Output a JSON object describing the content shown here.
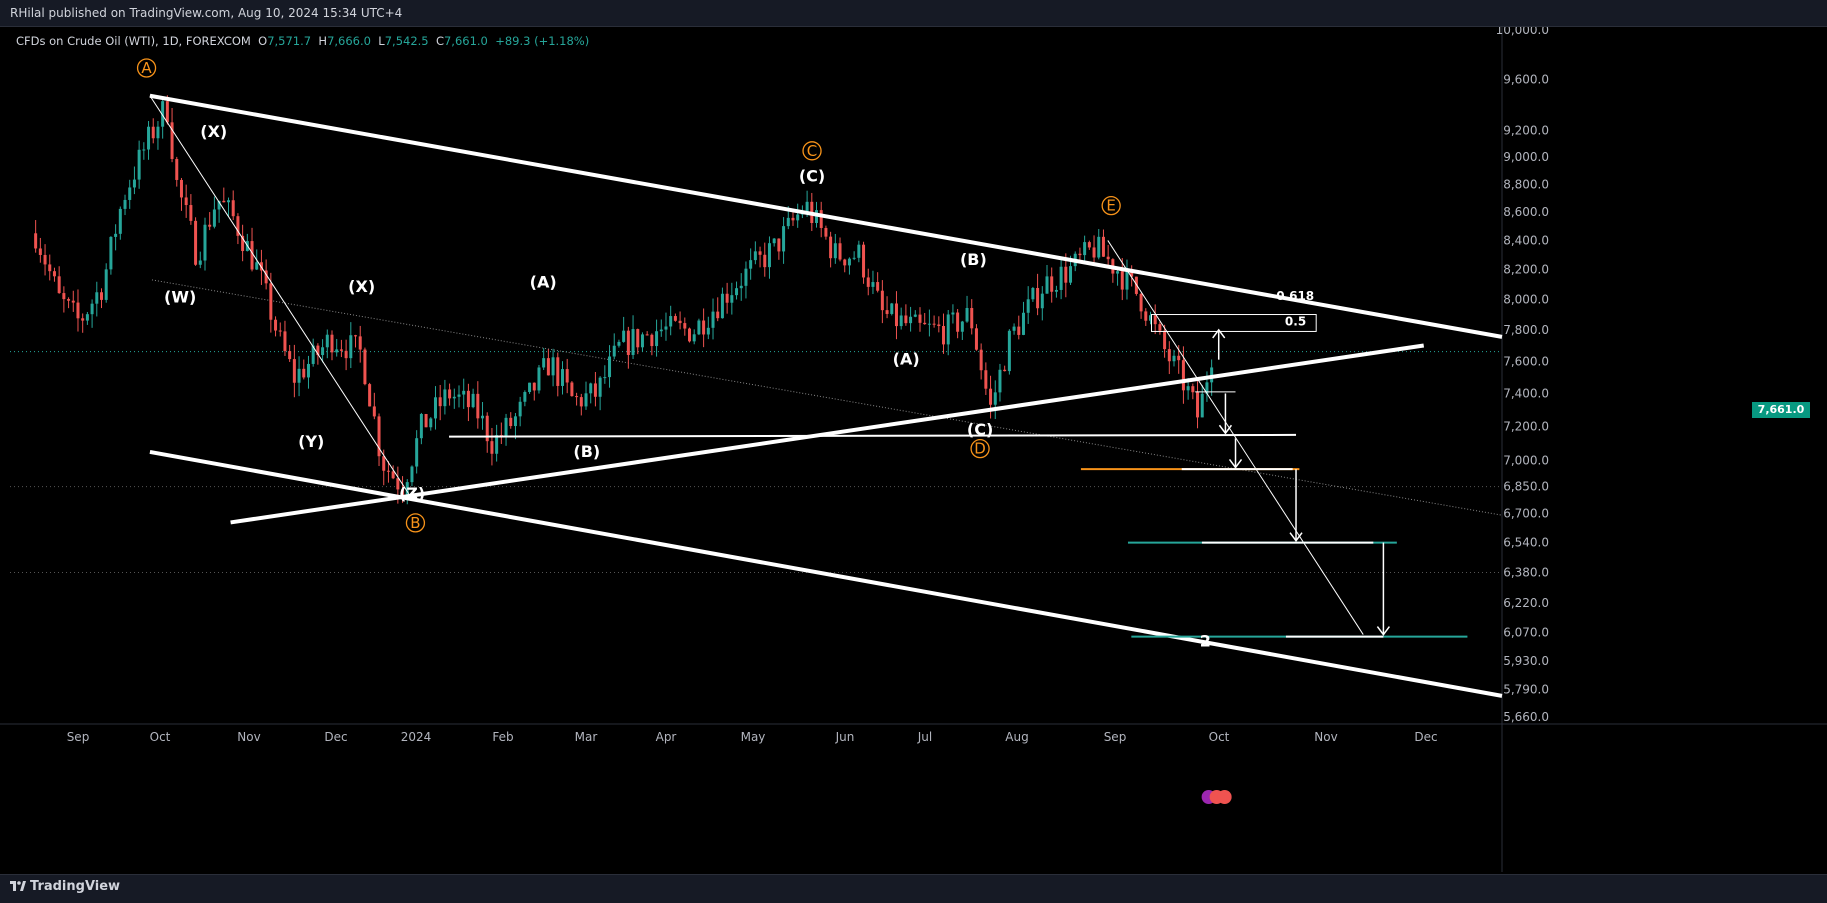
{
  "header": {
    "publisher": "RHilal published on TradingView.com, Aug 10, 2024 15:34 UTC+4"
  },
  "legend": {
    "symbol": "CFDs on Crude Oil (WTI), 1D, FOREXCOM",
    "o_label": "O",
    "o_value": "7,571.7",
    "h_label": "H",
    "h_value": "7,666.0",
    "l_label": "L",
    "l_value": "7,542.5",
    "c_label": "C",
    "c_value": "7,661.0",
    "change": "+89.3 (+1.18%)"
  },
  "footer": {
    "brand": "TradingView"
  },
  "last_price": "7,661.0",
  "colors": {
    "up": "#26a69a",
    "down": "#ef5350",
    "background": "#000000",
    "orange": "#f7931a",
    "green_level": "#26a69a",
    "price_tag": "#089981"
  },
  "chart_data": {
    "type": "candlestick",
    "symbol": "CFDs on Crude Oil (WTI)",
    "timeframe": "1D",
    "y_scale": "log",
    "ylim": [
      5660,
      10000
    ],
    "y_ticks": [
      "10,000.0",
      "9,600.0",
      "9,200.0",
      "9,000.0",
      "8,800.0",
      "8,600.0",
      "8,400.0",
      "8,200.0",
      "8,000.0",
      "7,800.0",
      "7,600.0",
      "7,400.0",
      "7,200.0",
      "7,000.0",
      "6,850.0",
      "6,700.0",
      "6,540.0",
      "6,380.0",
      "6,220.0",
      "6,070.0",
      "5,930.0",
      "5,790.0",
      "5,660.0"
    ],
    "x_ticks": [
      "Sep",
      "Oct",
      "Nov",
      "Dec",
      "2024",
      "Feb",
      "Mar",
      "Apr",
      "May",
      "Jun",
      "Jul",
      "Aug",
      "Sep",
      "Oct",
      "Nov",
      "Dec"
    ],
    "price_path": [
      [
        "2023-08-25",
        8450
      ],
      [
        "2023-09-01",
        8000
      ],
      [
        "2023-09-07",
        7850
      ],
      [
        "2023-09-14",
        8100
      ],
      [
        "2023-09-20",
        8700
      ],
      [
        "2023-09-27",
        9100
      ],
      [
        "2023-10-03",
        9400
      ],
      [
        "2023-10-06",
        8800
      ],
      [
        "2023-10-12",
        8300
      ],
      [
        "2023-10-18",
        8700
      ],
      [
        "2023-10-23",
        8550
      ],
      [
        "2023-10-30",
        8200
      ],
      [
        "2023-11-06",
        7700
      ],
      [
        "2023-11-10",
        7500
      ],
      [
        "2023-11-15",
        7600
      ],
      [
        "2023-11-21",
        7750
      ],
      [
        "2023-11-30",
        7650
      ],
      [
        "2023-12-06",
        7000
      ],
      [
        "2023-12-12",
        6850
      ],
      [
        "2023-12-18",
        7200
      ],
      [
        "2023-12-26",
        7400
      ],
      [
        "2024-01-03",
        7300
      ],
      [
        "2024-01-08",
        7100
      ],
      [
        "2024-01-15",
        7250
      ],
      [
        "2024-01-25",
        7600
      ],
      [
        "2024-02-01",
        7350
      ],
      [
        "2024-02-08",
        7400
      ],
      [
        "2024-02-15",
        7700
      ],
      [
        "2024-02-26",
        7800
      ],
      [
        "2024-03-08",
        7800
      ],
      [
        "2024-03-20",
        8100
      ],
      [
        "2024-04-01",
        8350
      ],
      [
        "2024-04-10",
        8650
      ],
      [
        "2024-04-19",
        8300
      ],
      [
        "2024-04-26",
        8300
      ],
      [
        "2024-05-03",
        7900
      ],
      [
        "2024-05-14",
        7800
      ],
      [
        "2024-05-22",
        7800
      ],
      [
        "2024-05-29",
        7900
      ],
      [
        "2024-06-04",
        7300
      ],
      [
        "2024-06-10",
        7750
      ],
      [
        "2024-06-20",
        8100
      ],
      [
        "2024-06-28",
        8200
      ],
      [
        "2024-07-05",
        8350
      ],
      [
        "2024-07-12",
        8200
      ],
      [
        "2024-07-19",
        8000
      ],
      [
        "2024-07-25",
        7700
      ],
      [
        "2024-08-01",
        7450
      ],
      [
        "2024-08-05",
        7250
      ],
      [
        "2024-08-09",
        7661
      ]
    ],
    "wave_labels": [
      {
        "text": "A",
        "date": "2023-09-27",
        "price": 9650,
        "style": "orange"
      },
      {
        "text": "(X)",
        "date": "2023-10-17",
        "price": 9150,
        "style": "white"
      },
      {
        "text": "(W)",
        "date": "2023-10-07",
        "price": 7980,
        "style": "white"
      },
      {
        "text": "(X)",
        "date": "2023-11-30",
        "price": 8050,
        "style": "white"
      },
      {
        "text": "(Y)",
        "date": "2023-11-15",
        "price": 7080,
        "style": "white"
      },
      {
        "text": "(Z)",
        "date": "2023-12-15",
        "price": 6780,
        "style": "white"
      },
      {
        "text": "B",
        "date": "2023-12-16",
        "price": 6620,
        "style": "orange"
      },
      {
        "text": "(A)",
        "date": "2024-01-23",
        "price": 8080,
        "style": "white"
      },
      {
        "text": "(B)",
        "date": "2024-02-05",
        "price": 7020,
        "style": "white"
      },
      {
        "text": "C",
        "date": "2024-04-12",
        "price": 9010,
        "style": "orange"
      },
      {
        "text": "(C)",
        "date": "2024-04-12",
        "price": 8820,
        "style": "white"
      },
      {
        "text": "(B)",
        "date": "2024-05-30",
        "price": 8230,
        "style": "white"
      },
      {
        "text": "(A)",
        "date": "2024-05-10",
        "price": 7580,
        "style": "white"
      },
      {
        "text": "(C)",
        "date": "2024-06-01",
        "price": 7150,
        "style": "white"
      },
      {
        "text": "D",
        "date": "2024-06-01",
        "price": 7040,
        "style": "orange"
      },
      {
        "text": "E",
        "date": "2024-07-10",
        "price": 8610,
        "style": "orange"
      },
      {
        "text": "2",
        "date": "2024-08-07",
        "price": 6000,
        "style": "white"
      }
    ],
    "fib_levels": [
      {
        "label": "0.618"
      },
      {
        "label": "0.5"
      }
    ],
    "projection_targets": [
      7150,
      6950,
      6540,
      6050
    ]
  }
}
